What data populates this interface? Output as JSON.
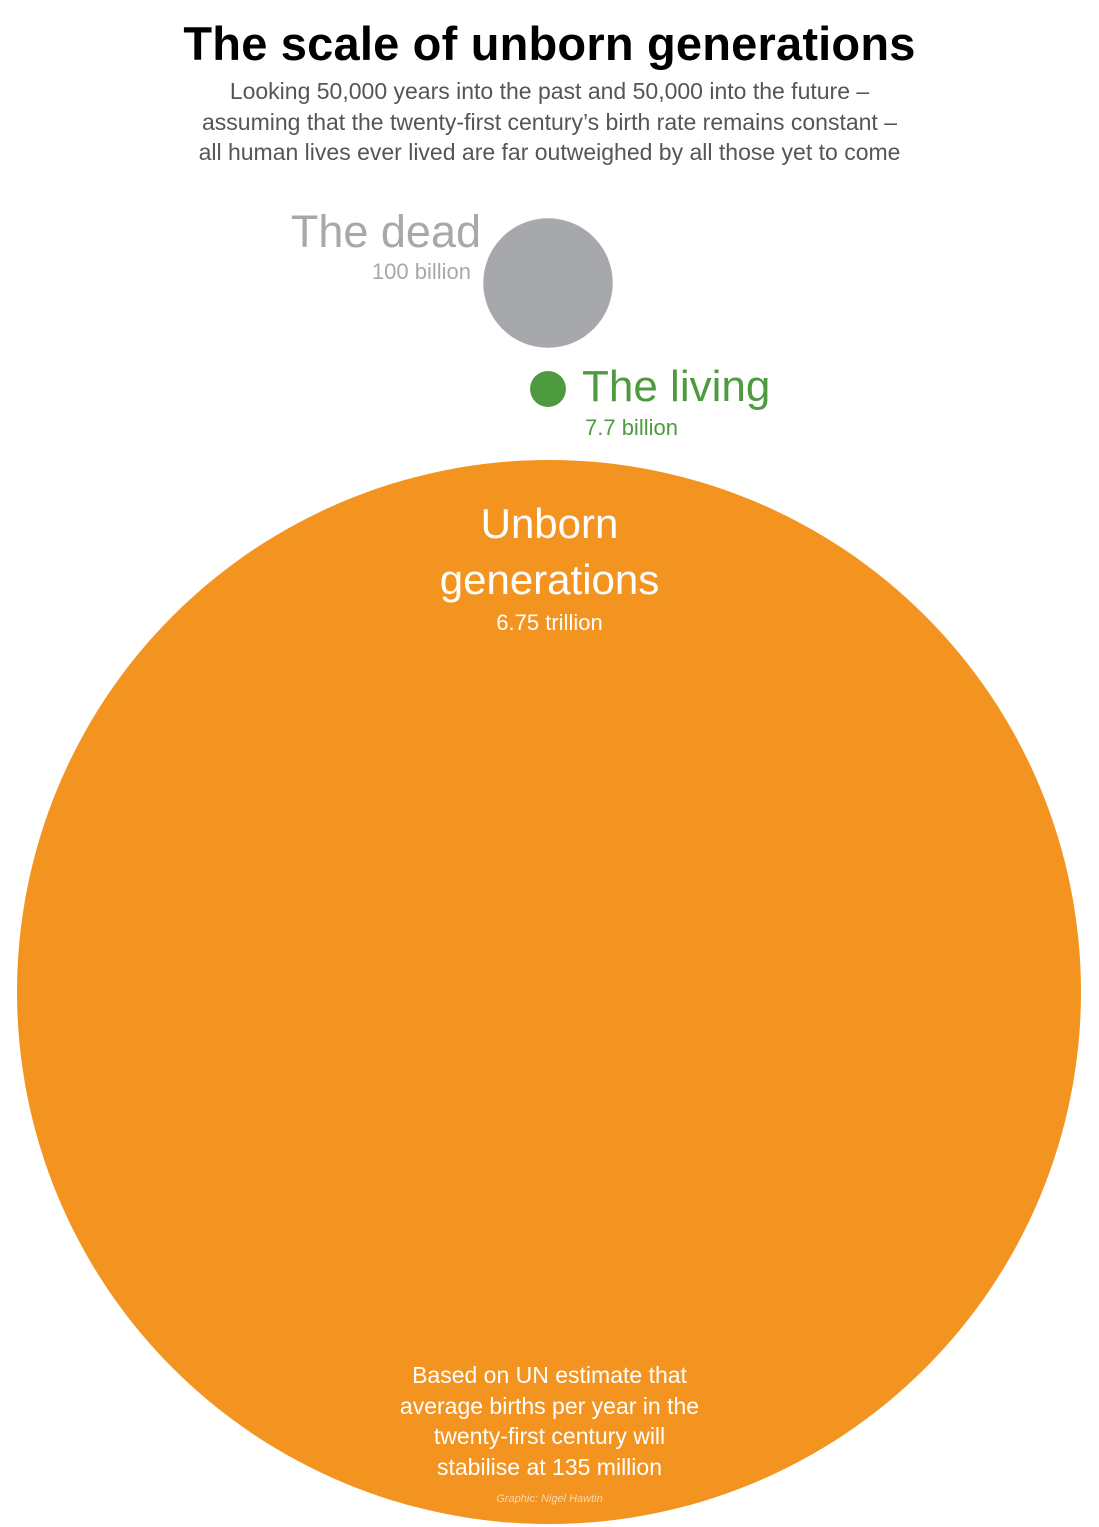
{
  "chart_data": {
    "type": "bubble",
    "title": "The scale of unborn generations",
    "subtitle_lines": [
      "Looking 50,000 years into the past and 50,000 into the future –",
      "assuming that the twenty-first century’s birth rate remains constant –",
      "all human lives ever lived are far outweighed by all those yet to come"
    ],
    "unit": "people",
    "series": [
      {
        "name": "The dead",
        "value": 100000000000,
        "value_label": "100 billion",
        "color": "#a7a8ab"
      },
      {
        "name": "The living",
        "value": 7700000000,
        "value_label": "7.7 billion",
        "color": "#4e9a3f"
      },
      {
        "name_lines": [
          "Unborn",
          "generations"
        ],
        "value": 6750000000000,
        "value_label": "6.75 trillion",
        "color": "#f39421"
      }
    ],
    "note_lines": [
      "Based on UN estimate that",
      "average births per year in the",
      "twenty-first century will",
      "stabilise at 135 million"
    ],
    "credit": "Graphic: Nigel Hawtin"
  }
}
